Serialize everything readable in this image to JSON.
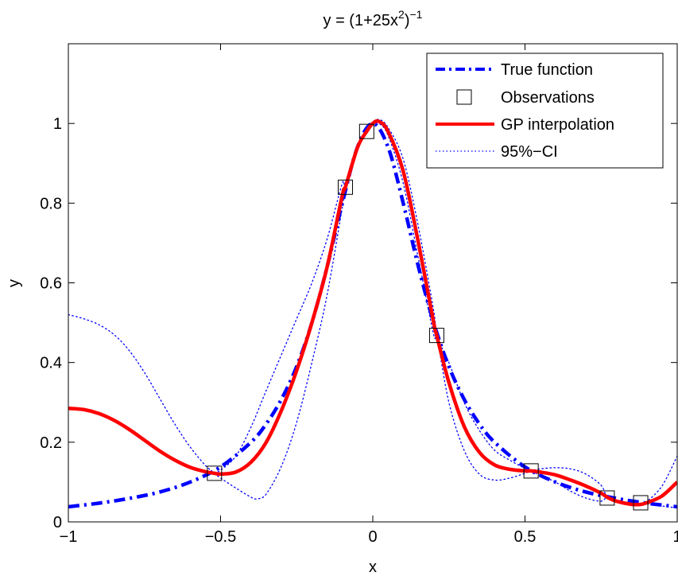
{
  "chart_data": {
    "type": "line",
    "title": "y = (1+25x",
    "title_sup1": "2",
    "title_close": ")",
    "title_sup2": "−1",
    "xlabel": "x",
    "ylabel": "y",
    "xlim": [
      -1,
      1
    ],
    "ylim": [
      0,
      1.2
    ],
    "xticks": [
      -1,
      -0.5,
      0,
      0.5,
      1
    ],
    "xtick_labels": [
      "−1",
      "−0.5",
      "0",
      "0.5",
      "1"
    ],
    "yticks": [
      0,
      0.2,
      0.4,
      0.6,
      0.8,
      1
    ],
    "ytick_labels": [
      "0",
      "0.2",
      "0.4",
      "0.6",
      "0.8",
      "1"
    ],
    "grid": false,
    "legend_position": "top-right",
    "series": [
      {
        "name": "True function",
        "style": "dash-dot",
        "color": "#0000ff",
        "x": [
          -1,
          -0.9,
          -0.8,
          -0.7,
          -0.6,
          -0.5,
          -0.4,
          -0.35,
          -0.3,
          -0.25,
          -0.2,
          -0.15,
          -0.1,
          -0.05,
          0,
          0.05,
          0.1,
          0.15,
          0.2,
          0.25,
          0.3,
          0.35,
          0.4,
          0.5,
          0.6,
          0.7,
          0.8,
          0.9,
          1
        ],
        "y": [
          0.038,
          0.047,
          0.059,
          0.075,
          0.1,
          0.138,
          0.2,
          0.246,
          0.308,
          0.39,
          0.5,
          0.64,
          0.8,
          0.941,
          1,
          0.941,
          0.8,
          0.64,
          0.5,
          0.39,
          0.308,
          0.246,
          0.2,
          0.138,
          0.1,
          0.075,
          0.059,
          0.047,
          0.038
        ]
      },
      {
        "name": "Observations",
        "style": "marker-square",
        "color": "#000000",
        "x": [
          -0.52,
          -0.09,
          -0.02,
          0.21,
          0.52,
          0.77,
          0.88
        ],
        "y": [
          0.122,
          0.84,
          0.98,
          0.468,
          0.128,
          0.06,
          0.048
        ]
      },
      {
        "name": "GP interpolation",
        "style": "solid",
        "color": "#ff0000",
        "x": [
          -1,
          -0.95,
          -0.9,
          -0.85,
          -0.8,
          -0.75,
          -0.7,
          -0.65,
          -0.6,
          -0.55,
          -0.52,
          -0.5,
          -0.45,
          -0.4,
          -0.35,
          -0.3,
          -0.25,
          -0.2,
          -0.15,
          -0.1,
          -0.09,
          -0.05,
          -0.02,
          0,
          0.02,
          0.05,
          0.1,
          0.15,
          0.2,
          0.21,
          0.25,
          0.3,
          0.35,
          0.4,
          0.45,
          0.5,
          0.52,
          0.55,
          0.6,
          0.65,
          0.7,
          0.75,
          0.77,
          0.8,
          0.85,
          0.88,
          0.9,
          0.95,
          1
        ],
        "y": [
          0.285,
          0.282,
          0.272,
          0.255,
          0.232,
          0.205,
          0.178,
          0.155,
          0.137,
          0.126,
          0.122,
          0.12,
          0.125,
          0.15,
          0.2,
          0.28,
          0.38,
          0.5,
          0.64,
          0.82,
          0.84,
          0.94,
          0.98,
          1.0,
          1.005,
          0.98,
          0.88,
          0.7,
          0.5,
          0.468,
          0.35,
          0.24,
          0.175,
          0.143,
          0.132,
          0.128,
          0.128,
          0.125,
          0.118,
          0.105,
          0.09,
          0.072,
          0.062,
          0.052,
          0.044,
          0.044,
          0.048,
          0.065,
          0.1
        ]
      },
      {
        "name": "95%−CI",
        "style": "dotted",
        "color": "#0000ff",
        "x": [
          -1,
          -0.95,
          -0.9,
          -0.85,
          -0.8,
          -0.75,
          -0.7,
          -0.65,
          -0.6,
          -0.55,
          -0.52,
          -0.5,
          -0.45,
          -0.4,
          -0.38,
          -0.35,
          -0.3,
          -0.25,
          -0.2,
          -0.15,
          -0.1,
          -0.09,
          -0.05,
          -0.02,
          0,
          0.02,
          0.05,
          0.1,
          0.15,
          0.2,
          0.21,
          0.25,
          0.3,
          0.35,
          0.4,
          0.45,
          0.5,
          0.52,
          0.55,
          0.6,
          0.65,
          0.7,
          0.75,
          0.77,
          0.8,
          0.85,
          0.88,
          0.9,
          0.95,
          1
        ],
        "y": [
          0.52,
          0.51,
          0.495,
          0.47,
          0.43,
          0.375,
          0.31,
          0.245,
          0.188,
          0.142,
          0.122,
          0.11,
          0.085,
          0.062,
          0.058,
          0.07,
          0.14,
          0.25,
          0.4,
          0.57,
          0.79,
          0.84,
          0.935,
          0.98,
          1.0,
          1.0,
          0.97,
          0.85,
          0.66,
          0.47,
          0.468,
          0.3,
          0.18,
          0.12,
          0.105,
          0.11,
          0.122,
          0.128,
          0.133,
          0.136,
          0.133,
          0.12,
          0.092,
          0.062,
          0.05,
          0.042,
          0.044,
          0.045,
          0.04,
          0.035
        ]
      },
      {
        "name": "",
        "style": "dotted",
        "color": "#0000ff",
        "x": [
          -0.52,
          -0.5,
          -0.45,
          -0.4,
          -0.35,
          -0.3,
          -0.25,
          -0.2,
          -0.15,
          -0.1,
          -0.09,
          -0.05,
          -0.02,
          0,
          0.02,
          0.05,
          0.1,
          0.15,
          0.2,
          0.21,
          0.25,
          0.3,
          0.35,
          0.4,
          0.45,
          0.5,
          0.52,
          0.55,
          0.6,
          0.65,
          0.7,
          0.75,
          0.77,
          0.8,
          0.85,
          0.88,
          0.9,
          0.95,
          1
        ],
        "y": [
          0.122,
          0.13,
          0.165,
          0.238,
          0.33,
          0.42,
          0.51,
          0.6,
          0.71,
          0.85,
          0.84,
          0.945,
          0.98,
          1.0,
          1.01,
          0.99,
          0.91,
          0.74,
          0.53,
          0.468,
          0.4,
          0.3,
          0.23,
          0.18,
          0.155,
          0.134,
          0.128,
          0.117,
          0.1,
          0.077,
          0.06,
          0.052,
          0.062,
          0.054,
          0.046,
          0.044,
          0.051,
          0.09,
          0.165
        ]
      }
    ]
  }
}
